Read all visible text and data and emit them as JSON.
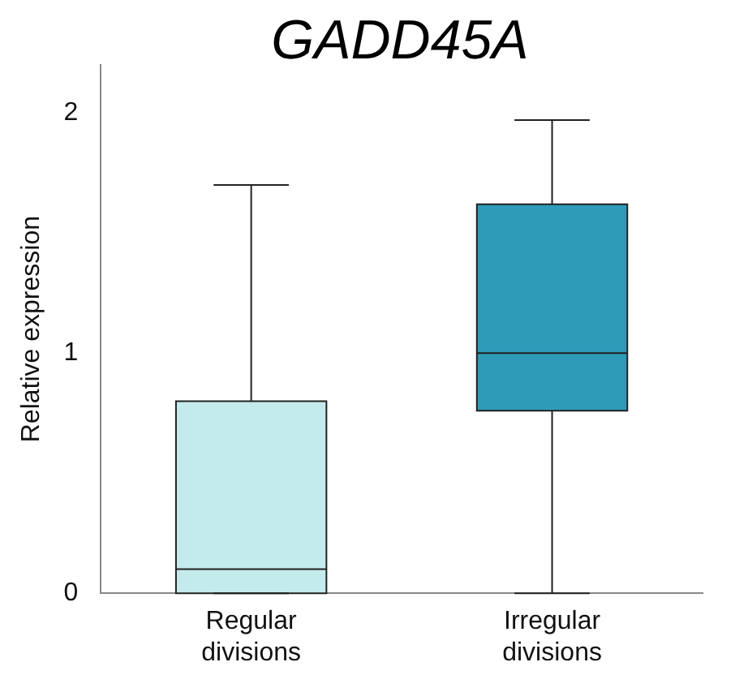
{
  "chart_data": {
    "type": "box",
    "title": "GADD45A",
    "ylabel": "Relative expression",
    "categories": [
      "Regular divisions",
      "Irregular divisions"
    ],
    "colors": [
      "#c4ebeb",
      "#2e9bb9"
    ],
    "boxes": [
      {
        "low": 0,
        "q1": 0,
        "median": 0.1,
        "q3": 0.8,
        "high": 1.7
      },
      {
        "low": 0,
        "q1": 0.76,
        "median": 1,
        "q3": 1.62,
        "high": 1.97
      }
    ],
    "ylim": [
      0,
      2.2
    ],
    "yticks": [
      0,
      1,
      2
    ],
    "grid": false,
    "legend": false
  }
}
